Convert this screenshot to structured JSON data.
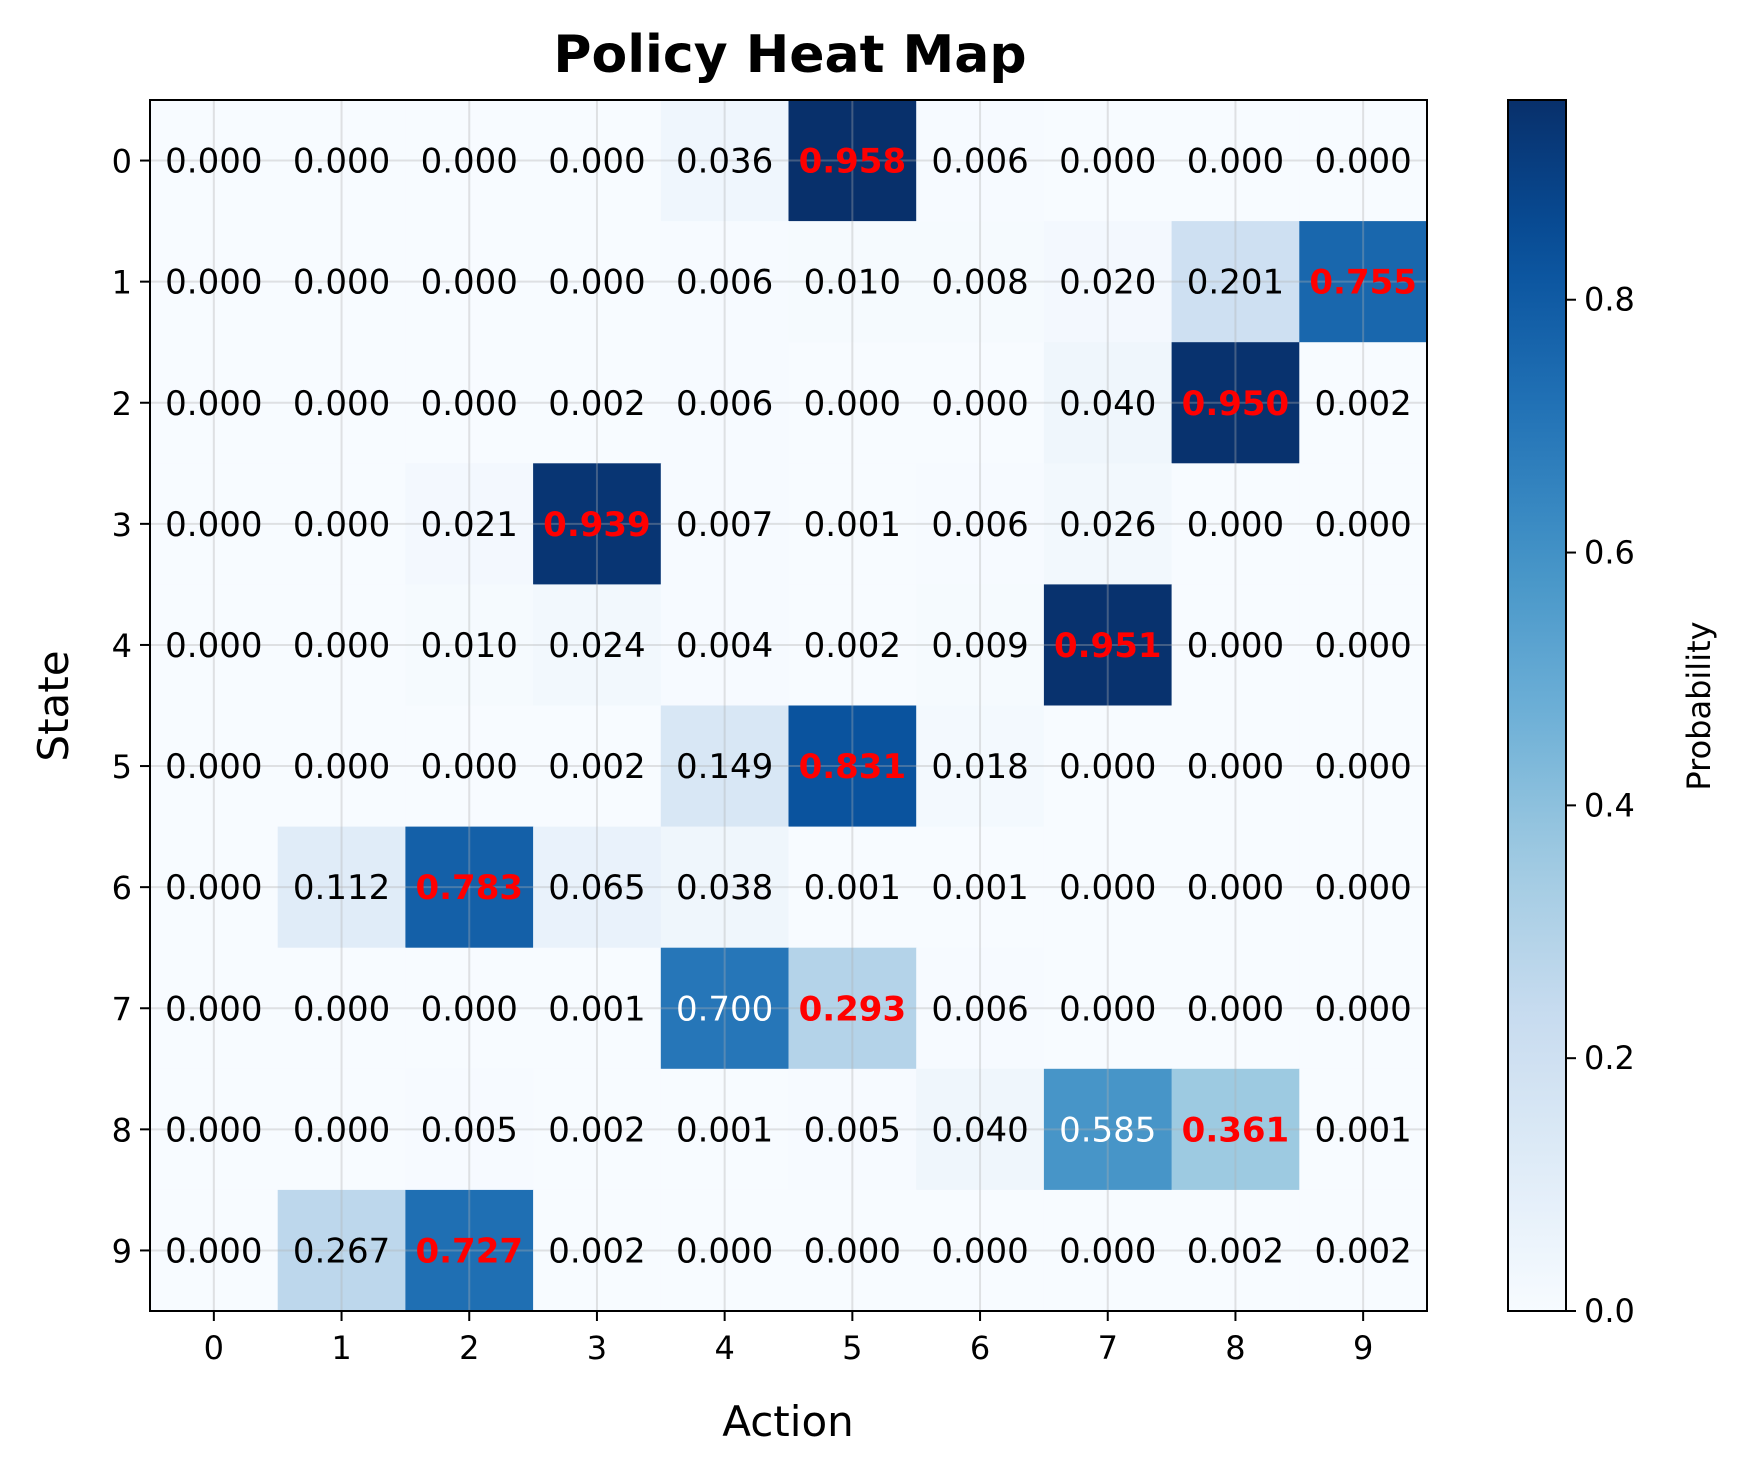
{
  "chart_data": {
    "type": "heatmap",
    "title": "Policy Heat Map",
    "xlabel": "Action",
    "ylabel": "State",
    "x_categories": [
      "0",
      "1",
      "2",
      "3",
      "4",
      "5",
      "6",
      "7",
      "8",
      "9"
    ],
    "y_categories": [
      "0",
      "1",
      "2",
      "3",
      "4",
      "5",
      "6",
      "7",
      "8",
      "9"
    ],
    "values": [
      [
        0.0,
        0.0,
        0.0,
        0.0,
        0.036,
        0.958,
        0.006,
        0.0,
        0.0,
        0.0
      ],
      [
        0.0,
        0.0,
        0.0,
        0.0,
        0.006,
        0.01,
        0.008,
        0.02,
        0.201,
        0.755
      ],
      [
        0.0,
        0.0,
        0.0,
        0.002,
        0.006,
        0.0,
        0.0,
        0.04,
        0.95,
        0.002
      ],
      [
        0.0,
        0.0,
        0.021,
        0.939,
        0.007,
        0.001,
        0.006,
        0.026,
        0.0,
        0.0
      ],
      [
        0.0,
        0.0,
        0.01,
        0.024,
        0.004,
        0.002,
        0.009,
        0.951,
        0.0,
        0.0
      ],
      [
        0.0,
        0.0,
        0.0,
        0.002,
        0.149,
        0.831,
        0.018,
        0.0,
        0.0,
        0.0
      ],
      [
        0.0,
        0.112,
        0.783,
        0.065,
        0.038,
        0.001,
        0.001,
        0.0,
        0.0,
        0.0
      ],
      [
        0.0,
        0.0,
        0.0,
        0.001,
        0.7,
        0.293,
        0.006,
        0.0,
        0.0,
        0.0
      ],
      [
        0.0,
        0.0,
        0.005,
        0.002,
        0.001,
        0.005,
        0.04,
        0.585,
        0.361,
        0.001
      ],
      [
        0.0,
        0.267,
        0.727,
        0.002,
        0.0,
        0.0,
        0.0,
        0.0,
        0.002,
        0.002
      ]
    ],
    "highlighted_cells": [
      [
        0,
        5
      ],
      [
        1,
        9
      ],
      [
        2,
        8
      ],
      [
        3,
        3
      ],
      [
        4,
        7
      ],
      [
        5,
        5
      ],
      [
        6,
        2
      ],
      [
        7,
        5
      ],
      [
        8,
        8
      ],
      [
        9,
        2
      ]
    ],
    "highlight_color": "#ff0000",
    "colormap": "Blues",
    "vmin": 0.0,
    "vmax": 0.958,
    "colorbar": {
      "label": "Probability",
      "ticks": [
        0.0,
        0.2,
        0.4,
        0.6,
        0.8
      ],
      "tick_labels": [
        "0.0",
        "0.2",
        "0.4",
        "0.6",
        "0.8"
      ]
    },
    "grid": true
  }
}
